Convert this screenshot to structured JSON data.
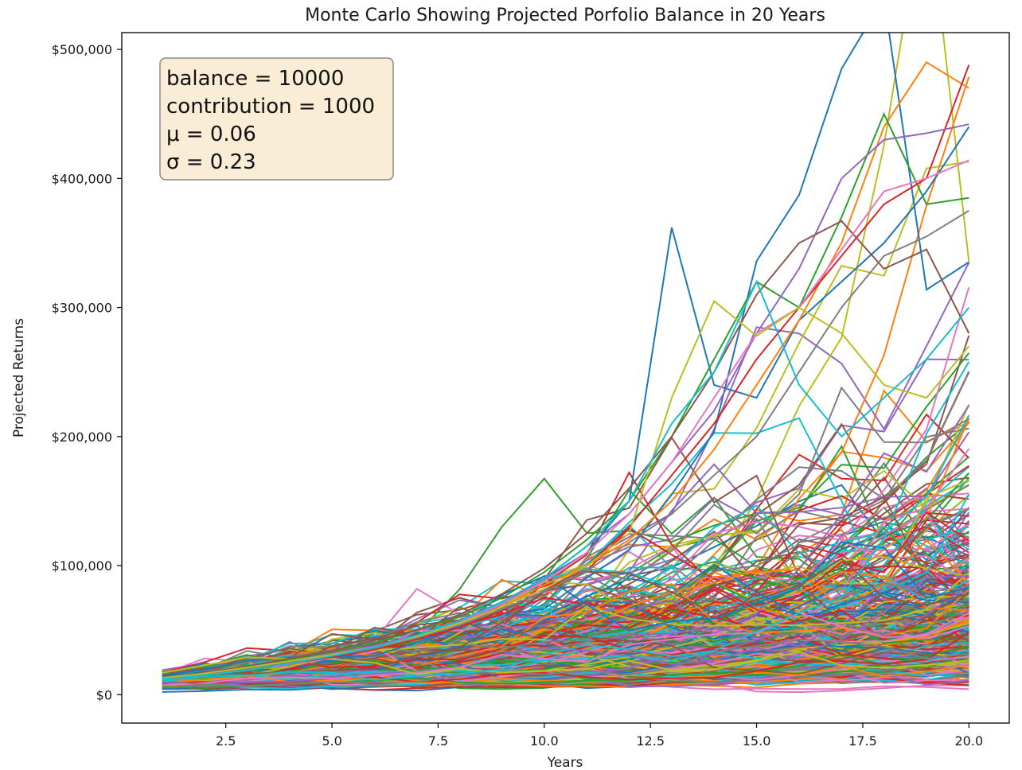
{
  "chart_data": {
    "type": "line",
    "title": "Monte Carlo Showing Projected Porfolio Balance in 20 Years",
    "xlabel": "Years",
    "ylabel": "Projected Returns",
    "xlim": [
      0.05,
      20.95
    ],
    "ylim": [
      -22000,
      513000
    ],
    "x_ticks": [
      2.5,
      5.0,
      7.5,
      10.0,
      12.5,
      15.0,
      17.5,
      20.0
    ],
    "x_tick_labels": [
      "2.5",
      "5.0",
      "7.5",
      "10.0",
      "12.5",
      "15.0",
      "17.5",
      "20.0"
    ],
    "y_ticks": [
      0,
      100000,
      200000,
      300000,
      400000,
      500000
    ],
    "y_tick_labels": [
      "$0",
      "$100,000",
      "$200,000",
      "$300,000",
      "$400,000",
      "$500,000"
    ],
    "grid": false,
    "legend": "none",
    "x": [
      1,
      2,
      3,
      4,
      5,
      6,
      7,
      8,
      9,
      10,
      11,
      12,
      13,
      14,
      15,
      16,
      17,
      18,
      19,
      20
    ],
    "annotation": {
      "lines": [
        "balance = 10000",
        "contribution = 1000",
        "μ = 0.06",
        "σ = 0.23"
      ],
      "box_color": "#f5deb3",
      "border_color": "#8a8a8a"
    },
    "colors": [
      "#1f77b4",
      "#ff7f0e",
      "#2ca02c",
      "#d62728",
      "#9467bd",
      "#8c564b",
      "#e377c2",
      "#7f7f7f",
      "#bcbd22",
      "#17becf"
    ],
    "simulation": {
      "count": 500,
      "years": 20,
      "balance": 10000,
      "contribution": 1000,
      "mu": 0.06,
      "sigma": 0.23
    },
    "series": [
      {
        "values": [
          14000,
          17500,
          21000,
          26000,
          30000,
          38000,
          45000,
          55000,
          70000,
          90000,
          110000,
          150000,
          362000,
          240000,
          230000,
          290000,
          320000,
          350000,
          390000,
          440000
        ]
      },
      {
        "values": [
          13000,
          16000,
          20000,
          24000,
          30000,
          36000,
          44000,
          55000,
          68000,
          85000,
          100000,
          120000,
          150000,
          190000,
          240000,
          290000,
          350000,
          440000,
          490000,
          470000
        ]
      },
      {
        "values": [
          13000,
          17000,
          22000,
          27000,
          33000,
          40000,
          50000,
          60000,
          75000,
          95000,
          120000,
          150000,
          200000,
          260000,
          320000,
          300000,
          370000,
          450000,
          380000,
          385000
        ]
      },
      {
        "values": [
          12000,
          15000,
          19000,
          24000,
          29000,
          35000,
          43000,
          52000,
          65000,
          80000,
          100000,
          130000,
          170000,
          210000,
          260000,
          300000,
          340000,
          380000,
          400000,
          488000
        ]
      },
      {
        "values": [
          12500,
          16000,
          21000,
          26000,
          32000,
          38000,
          46000,
          56000,
          70000,
          90000,
          115000,
          140000,
          180000,
          220000,
          280000,
          330000,
          400000,
          430000,
          435000,
          442000
        ]
      },
      {
        "values": [
          13000,
          17000,
          22000,
          28000,
          34000,
          42000,
          50000,
          62000,
          78000,
          98000,
          125000,
          160000,
          200000,
          250000,
          310000,
          350000,
          367000,
          330000,
          345000,
          280000
        ]
      },
      {
        "values": [
          12000,
          15500,
          20000,
          25000,
          31000,
          37000,
          45000,
          56000,
          70000,
          88000,
          110000,
          140000,
          180000,
          230000,
          280000,
          300000,
          345000,
          390000,
          400000,
          414000
        ]
      },
      {
        "values": [
          12500,
          16000,
          20000,
          25000,
          30000,
          36000,
          44000,
          54000,
          66000,
          80000,
          96000,
          118000,
          140000,
          170000,
          200000,
          250000,
          300000,
          340000,
          355000,
          375000
        ]
      },
      {
        "values": [
          13000,
          16500,
          21000,
          26000,
          31000,
          37000,
          45000,
          55000,
          68000,
          82000,
          100000,
          125000,
          230000,
          305000,
          278000,
          300000,
          280000,
          240000,
          230000,
          270000
        ]
      },
      {
        "values": [
          12000,
          15000,
          19000,
          24000,
          30000,
          37000,
          46000,
          57000,
          72000,
          90000,
          115000,
          150000,
          210000,
          250000,
          320000,
          240000,
          200000,
          230000,
          260000,
          300000
        ]
      }
    ]
  }
}
